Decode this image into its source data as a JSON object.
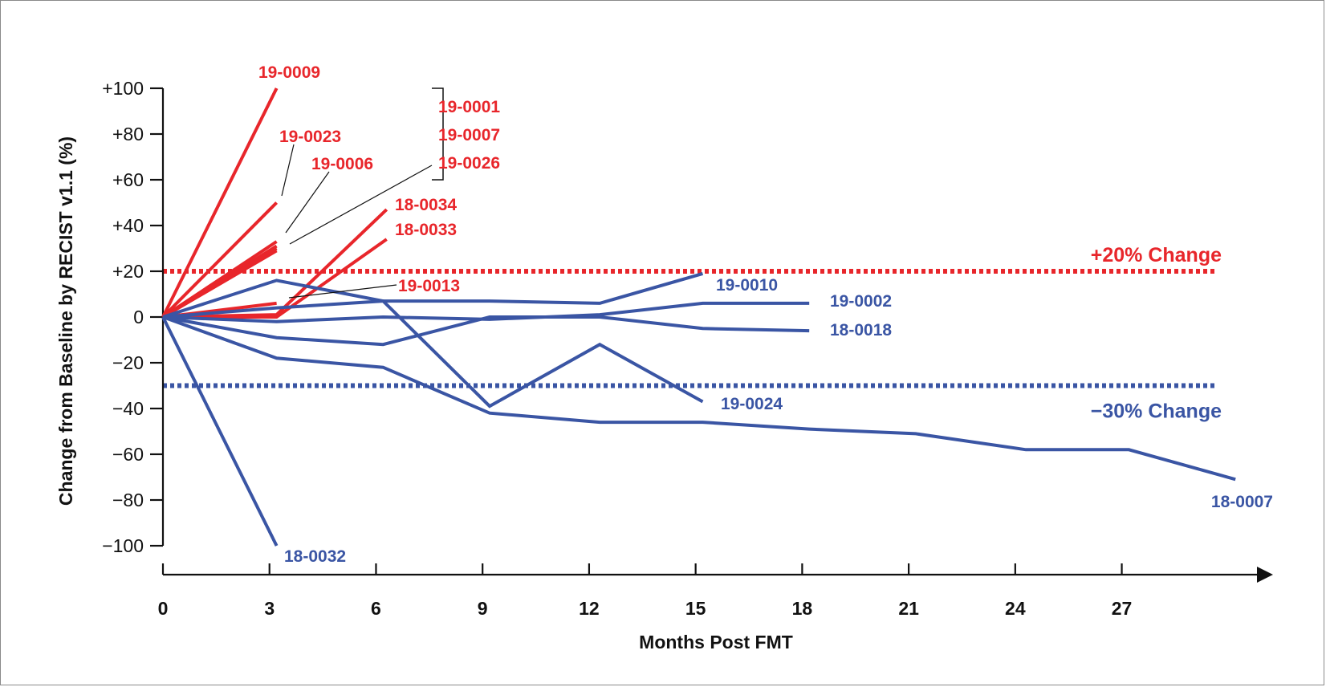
{
  "chart_data": {
    "type": "line",
    "title": "",
    "xlabel": "Months Post FMT",
    "ylabel": "Change from Baseline by RECIST v1.1 (%)",
    "xlim": [
      0,
      30.4
    ],
    "ylim": [
      -100,
      100
    ],
    "x_ticks": [
      {
        "value": 0,
        "label": "0"
      },
      {
        "value": 3,
        "label": "3"
      },
      {
        "value": 6,
        "label": "6"
      },
      {
        "value": 9,
        "label": "9"
      },
      {
        "value": 12,
        "label": "12"
      },
      {
        "value": 15,
        "label": "15"
      },
      {
        "value": 18,
        "label": "18"
      },
      {
        "value": 21,
        "label": "21"
      },
      {
        "value": 24,
        "label": "24"
      },
      {
        "value": 27,
        "label": "27"
      }
    ],
    "y_ticks": [
      {
        "value": 100,
        "label": "+100"
      },
      {
        "value": 80,
        "label": "+80"
      },
      {
        "value": 60,
        "label": "+60"
      },
      {
        "value": 40,
        "label": "+40"
      },
      {
        "value": 20,
        "label": "+20"
      },
      {
        "value": 0,
        "label": "0"
      },
      {
        "value": -20,
        "label": "−20"
      },
      {
        "value": -40,
        "label": "−40"
      },
      {
        "value": -60,
        "label": "−60"
      },
      {
        "value": -80,
        "label": "−80"
      },
      {
        "value": -100,
        "label": "−100"
      }
    ],
    "grid": false,
    "colors": {
      "progression": "#e8262b",
      "response": "#3a55a4"
    },
    "reference_lines": [
      {
        "y": 20,
        "label": "+20% Change",
        "group": "progression"
      },
      {
        "y": -30,
        "label": "−30% Change",
        "group": "response"
      }
    ],
    "series": [
      {
        "name": "19-0009",
        "group": "progression",
        "points": [
          [
            0,
            0
          ],
          [
            3.2,
            100
          ]
        ]
      },
      {
        "name": "19-0023",
        "group": "progression",
        "points": [
          [
            0,
            0
          ],
          [
            3.2,
            50
          ]
        ]
      },
      {
        "name": "19-0006",
        "group": "progression",
        "points": [
          [
            0,
            0
          ],
          [
            3.2,
            33
          ]
        ]
      },
      {
        "name": "19-0001",
        "group": "progression",
        "points": [
          [
            0,
            0
          ],
          [
            3.2,
            31
          ]
        ]
      },
      {
        "name": "19-0007",
        "group": "progression",
        "points": [
          [
            0,
            0
          ],
          [
            3.2,
            29
          ]
        ]
      },
      {
        "name": "19-0026",
        "group": "progression",
        "points": [
          [
            0,
            0
          ],
          [
            3.2,
            30
          ]
        ]
      },
      {
        "name": "18-0034",
        "group": "progression",
        "points": [
          [
            0,
            0
          ],
          [
            3.2,
            1
          ],
          [
            6.3,
            47
          ]
        ]
      },
      {
        "name": "18-0033",
        "group": "progression",
        "points": [
          [
            0,
            0
          ],
          [
            3.2,
            0
          ],
          [
            6.3,
            34
          ]
        ]
      },
      {
        "name": "19-0013",
        "group": "progression",
        "points": [
          [
            0,
            0
          ],
          [
            3.2,
            6
          ]
        ]
      },
      {
        "name": "19-0010",
        "group": "response",
        "points": [
          [
            0,
            0
          ],
          [
            3.2,
            4
          ],
          [
            6.2,
            7
          ],
          [
            9.2,
            7
          ],
          [
            12.3,
            6
          ],
          [
            15.2,
            19
          ]
        ]
      },
      {
        "name": "19-0002",
        "group": "response",
        "points": [
          [
            0,
            0
          ],
          [
            3.2,
            -2
          ],
          [
            6.2,
            0
          ],
          [
            9.2,
            -1
          ],
          [
            12.3,
            1
          ],
          [
            15.2,
            6
          ],
          [
            18.2,
            6
          ]
        ]
      },
      {
        "name": "18-0018",
        "group": "response",
        "points": [
          [
            0,
            0
          ],
          [
            3.2,
            -9
          ],
          [
            6.2,
            -12
          ],
          [
            9.2,
            0
          ],
          [
            12.3,
            0
          ],
          [
            15.2,
            -5
          ],
          [
            18.2,
            -6
          ]
        ]
      },
      {
        "name": "19-0024",
        "group": "response",
        "points": [
          [
            0,
            0
          ],
          [
            3.2,
            16
          ],
          [
            6.2,
            7
          ],
          [
            9.2,
            -39
          ],
          [
            12.3,
            -12
          ],
          [
            15.2,
            -37
          ]
        ]
      },
      {
        "name": "18-0007",
        "group": "response",
        "points": [
          [
            0,
            0
          ],
          [
            3.2,
            -18
          ],
          [
            6.2,
            -22
          ],
          [
            9.2,
            -42
          ],
          [
            12.3,
            -46
          ],
          [
            15.2,
            -46
          ],
          [
            18.2,
            -49
          ],
          [
            21.2,
            -51
          ],
          [
            24.3,
            -58
          ],
          [
            27.2,
            -58
          ],
          [
            30.2,
            -71
          ]
        ]
      },
      {
        "name": "18-0032",
        "group": "response",
        "points": [
          [
            0,
            0
          ],
          [
            3.2,
            -100
          ]
        ]
      }
    ],
    "bracket_labels": [
      "19-0001",
      "19-0007",
      "19-0026"
    ]
  }
}
